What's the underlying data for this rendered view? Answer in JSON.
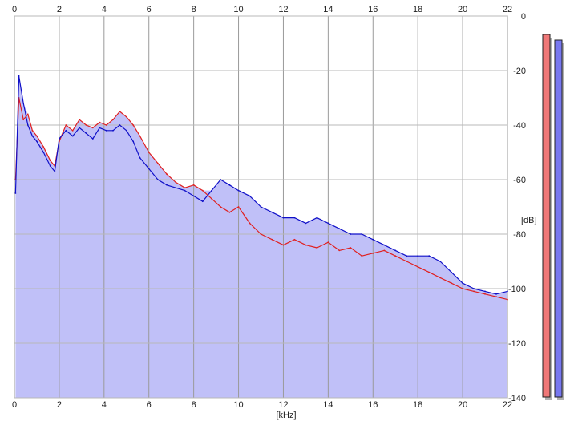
{
  "chart_data": {
    "type": "area",
    "xlabel": "[kHz]",
    "ylabel": "[dB]",
    "xlim": [
      0,
      22
    ],
    "ylim": [
      -140,
      0
    ],
    "x_ticks": [
      "0",
      "2",
      "4",
      "6",
      "8",
      "10",
      "12",
      "14",
      "16",
      "18",
      "20",
      "22"
    ],
    "y_ticks": [
      "0",
      "-20",
      "-40",
      "-60",
      "-80",
      "-100",
      "-120",
      "-140"
    ],
    "grid": true,
    "fill_color": "#c0c0f8",
    "series": [
      {
        "color": "#e02020",
        "x": [
          0.05,
          0.2,
          0.4,
          0.6,
          0.8,
          1.0,
          1.3,
          1.6,
          1.8,
          2.0,
          2.3,
          2.6,
          2.9,
          3.2,
          3.5,
          3.8,
          4.1,
          4.4,
          4.7,
          5.0,
          5.3,
          5.6,
          6.0,
          6.4,
          6.8,
          7.2,
          7.6,
          8.0,
          8.4,
          8.8,
          9.2,
          9.6,
          10.0,
          10.5,
          11.0,
          11.5,
          12.0,
          12.5,
          13.0,
          13.5,
          14.0,
          14.5,
          15.0,
          15.5,
          16.0,
          16.5,
          17.0,
          17.5,
          18.0,
          18.5,
          19.0,
          19.5,
          20.0,
          20.5,
          21.0,
          21.5,
          22.0
        ],
        "y": [
          -60,
          -30,
          -38,
          -36,
          -42,
          -44,
          -48,
          -53,
          -55,
          -46,
          -40,
          -42,
          -38,
          -40,
          -41,
          -39,
          -40,
          -38,
          -35,
          -37,
          -40,
          -44,
          -50,
          -54,
          -58,
          -61,
          -63,
          -62,
          -64,
          -67,
          -70,
          -72,
          -70,
          -76,
          -80,
          -82,
          -84,
          -82,
          -84,
          -85,
          -83,
          -86,
          -85,
          -88,
          -87,
          -86,
          -88,
          -90,
          -92,
          -94,
          -96,
          -98,
          -100,
          -101,
          -102,
          -103,
          -104
        ]
      },
      {
        "color": "#1010c8",
        "x": [
          0.05,
          0.2,
          0.4,
          0.6,
          0.8,
          1.0,
          1.3,
          1.6,
          1.8,
          2.0,
          2.3,
          2.6,
          2.9,
          3.2,
          3.5,
          3.8,
          4.1,
          4.4,
          4.7,
          5.0,
          5.3,
          5.6,
          6.0,
          6.4,
          6.8,
          7.2,
          7.6,
          8.0,
          8.4,
          8.8,
          9.2,
          9.6,
          10.0,
          10.5,
          11.0,
          11.5,
          12.0,
          12.5,
          13.0,
          13.5,
          14.0,
          14.5,
          15.0,
          15.5,
          16.0,
          16.5,
          17.0,
          17.5,
          18.0,
          18.5,
          19.0,
          19.5,
          20.0,
          20.5,
          21.0,
          21.5,
          22.0
        ],
        "y": [
          -65,
          -22,
          -32,
          -40,
          -44,
          -46,
          -50,
          -55,
          -57,
          -45,
          -42,
          -44,
          -41,
          -43,
          -45,
          -41,
          -42,
          -42,
          -40,
          -42,
          -46,
          -52,
          -56,
          -60,
          -62,
          -63,
          -64,
          -66,
          -68,
          -64,
          -60,
          -62,
          -64,
          -66,
          -70,
          -72,
          -74,
          -74,
          -76,
          -74,
          -76,
          -78,
          -80,
          -80,
          -82,
          -84,
          -86,
          -88,
          -88,
          -88,
          -90,
          -94,
          -98,
          -100,
          -101,
          -102,
          -101
        ]
      }
    ],
    "level_meters": [
      {
        "color": "#f07878"
      },
      {
        "color": "#7878f0"
      }
    ]
  }
}
